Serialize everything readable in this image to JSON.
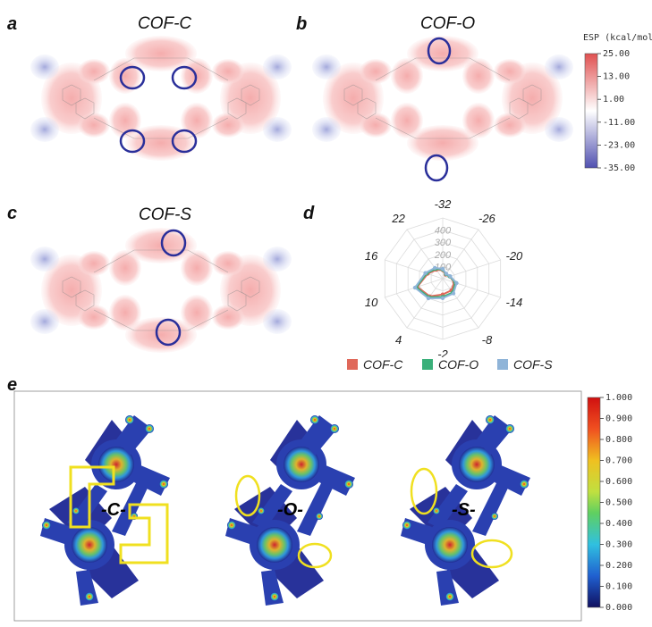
{
  "panels": {
    "a": {
      "label": "a",
      "title": "COF-C"
    },
    "b": {
      "label": "b",
      "title": "COF-O"
    },
    "c": {
      "label": "c",
      "title": "COF-S"
    },
    "d": {
      "label": "d"
    },
    "e": {
      "label": "e",
      "tags": [
        "-C-",
        "-O-",
        "-S-"
      ]
    }
  },
  "esp_colorbar": {
    "title": "ESP (kcal/mol)",
    "ticks": [
      "25.00",
      "13.00",
      "1.00",
      "-11.00",
      "-23.00",
      "-35.00"
    ],
    "colors": {
      "top": "#e05050",
      "middle": "#ffffff",
      "bottom": "#5050b0"
    }
  },
  "elf_colorbar": {
    "ticks": [
      "1.000",
      "0.900",
      "0.800",
      "0.700",
      "0.600",
      "0.500",
      "0.400",
      "0.300",
      "0.200",
      "0.100",
      "0.000"
    ]
  },
  "chart_data": {
    "type": "radar",
    "axes": [
      "-32",
      "-26",
      "-20",
      "-14",
      "-8",
      "-2",
      "4",
      "10",
      "16",
      "22"
    ],
    "radial_ticks": [
      "100",
      "200",
      "300",
      "400"
    ],
    "rmax": 500,
    "series": [
      {
        "name": "COF-C",
        "color": "#e0685a",
        "values": [
          70,
          40,
          60,
          100,
          120,
          130,
          180,
          220,
          130,
          90
        ]
      },
      {
        "name": "COF-O",
        "color": "#3ab07a",
        "values": [
          75,
          45,
          60,
          110,
          140,
          150,
          190,
          230,
          140,
          100
        ]
      },
      {
        "name": "COF-S",
        "color": "#8fb4d8",
        "values": [
          80,
          50,
          65,
          120,
          150,
          160,
          200,
          240,
          150,
          110
        ]
      }
    ]
  }
}
